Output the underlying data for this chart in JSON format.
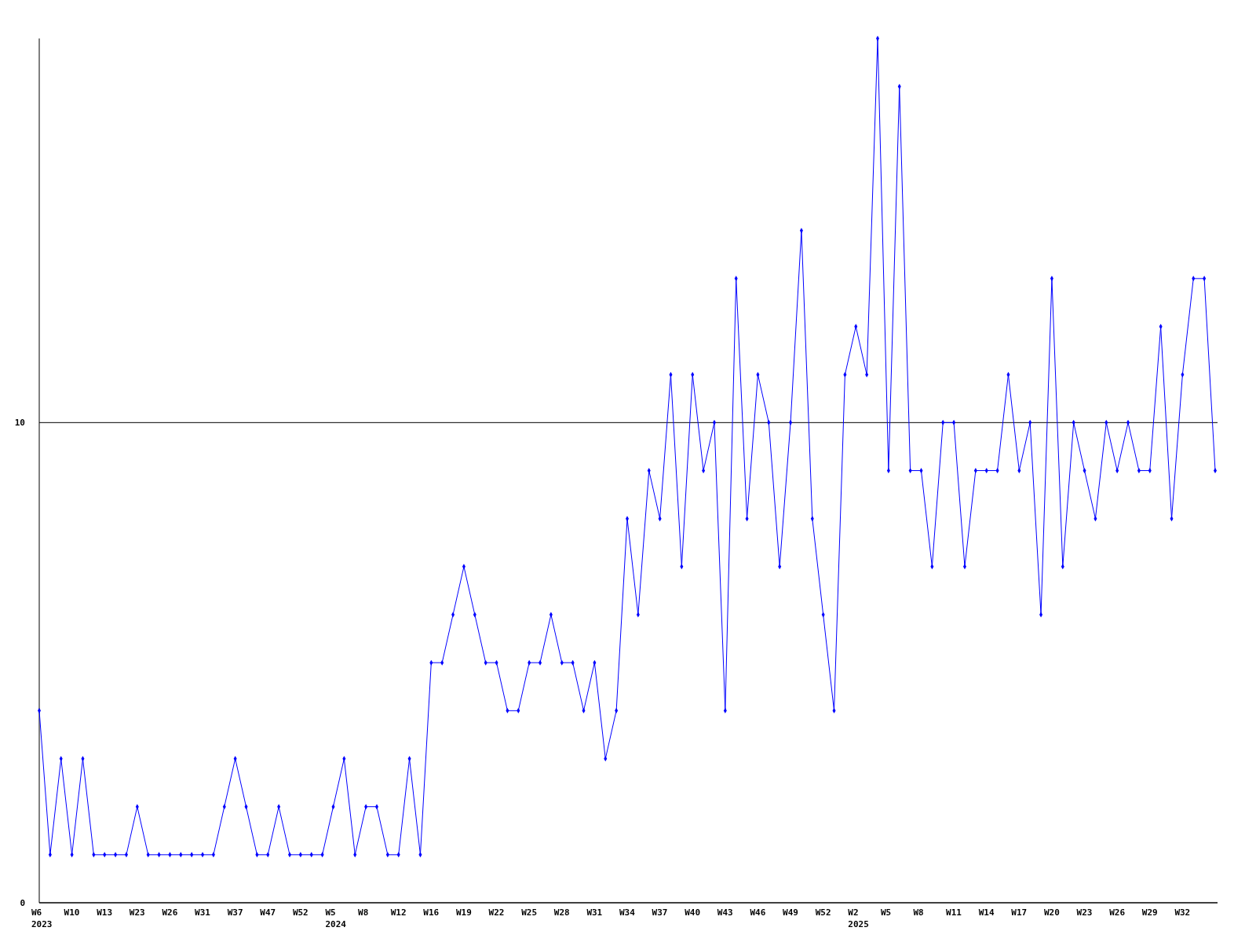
{
  "chart_data": {
    "type": "line",
    "categories": [
      "W6\n2023",
      null,
      null,
      "W10",
      null,
      null,
      "W13",
      null,
      null,
      "W23",
      null,
      null,
      "W26",
      null,
      null,
      "W31",
      null,
      null,
      "W37",
      null,
      null,
      "W47",
      null,
      null,
      "W52",
      null,
      null,
      "W5\n2024",
      null,
      null,
      "W8",
      null,
      null,
      "W12",
      null,
      null,
      "W16",
      null,
      null,
      "W19",
      null,
      null,
      "W22",
      null,
      null,
      "W25",
      null,
      null,
      "W28",
      null,
      null,
      "W31",
      null,
      null,
      "W34",
      null,
      null,
      "W37",
      null,
      null,
      "W40",
      null,
      null,
      "W43",
      null,
      null,
      "W46",
      null,
      null,
      "W49",
      null,
      null,
      "W52",
      null,
      null,
      "W2\n2025",
      null,
      null,
      "W5",
      null,
      null,
      "W8",
      null,
      null,
      "W11",
      null,
      null,
      "W14",
      null,
      null,
      "W17",
      null,
      null,
      "W20",
      null,
      null,
      "W23",
      null,
      null,
      "W26",
      null,
      null,
      "W29",
      null,
      null,
      "W32",
      null,
      null,
      null
    ],
    "series": [
      {
        "color": "#0000ff",
        "values": [
          4,
          1,
          3,
          1,
          3,
          1,
          1,
          1,
          1,
          2,
          1,
          1,
          1,
          1,
          1,
          1,
          1,
          2,
          3,
          2,
          1,
          1,
          2,
          1,
          1,
          1,
          1,
          2,
          3,
          1,
          2,
          2,
          1,
          1,
          3,
          1,
          5,
          5,
          6,
          7,
          6,
          5,
          5,
          4,
          4,
          5,
          5,
          6,
          5,
          5,
          4,
          5,
          3,
          4,
          8,
          6,
          9,
          8,
          11,
          7,
          11,
          9,
          10,
          4,
          13,
          8,
          11,
          10,
          7,
          10,
          14,
          8,
          6,
          4,
          11,
          12,
          11,
          18,
          9,
          17,
          9,
          9,
          7,
          10,
          10,
          7,
          9,
          9,
          9,
          11,
          9,
          10,
          6,
          13,
          7,
          10,
          9,
          8,
          10,
          9,
          10,
          9,
          9,
          12,
          8,
          11,
          13,
          13,
          9
        ]
      }
    ],
    "ylim": [
      0,
      18
    ],
    "yticks": [
      0,
      10
    ],
    "grid": "y",
    "marker": "diamond",
    "line_style": "solid"
  }
}
